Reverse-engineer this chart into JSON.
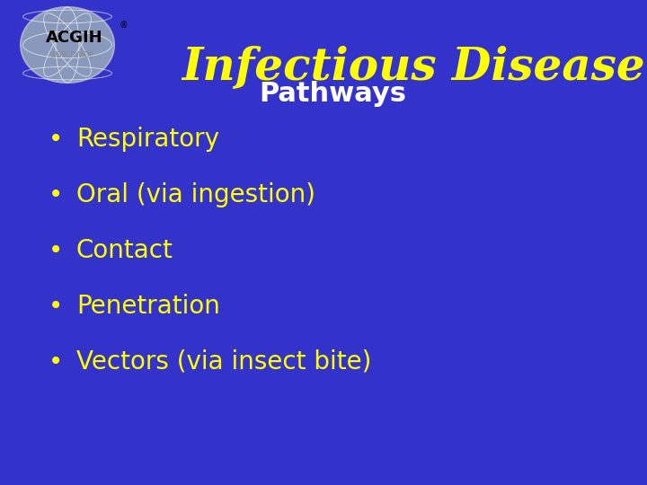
{
  "background_color": "#3333CC",
  "title_line1": "Infectious Disease",
  "title_line2": "Pathways",
  "title_color": "#FFFF00",
  "subtitle_color": "#FFFFFF",
  "bullet_items": [
    "Respiratory",
    "Oral (via ingestion)",
    "Contact",
    "Penetration",
    "Vectors (via insect bite)"
  ],
  "bullet_color": "#FFFF00",
  "bullet_char": "•",
  "title_fontsize": 36,
  "subtitle_fontsize": 22,
  "bullet_fontsize": 20
}
